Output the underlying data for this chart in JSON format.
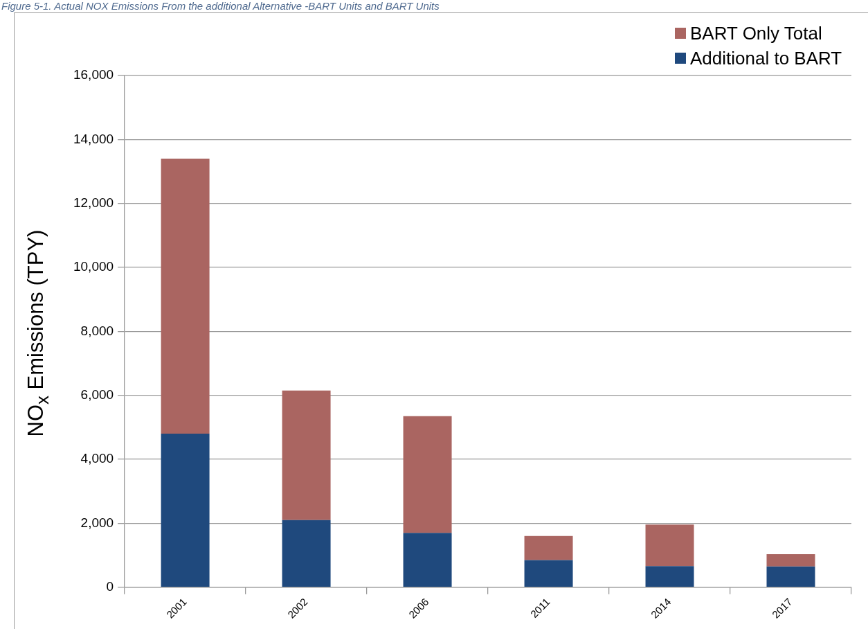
{
  "chart_data": {
    "type": "bar",
    "title": "Figure 5-1. Actual NOX Emissions From the additional Alternative -BART Units and BART Units",
    "ylabel": "NO$_{x}$ Emissions (TPY)",
    "categories": [
      "2001",
      "2002",
      "2006",
      "2011",
      "2014",
      "2017"
    ],
    "series": [
      {
        "name": "Additional to BART",
        "color": "#1f497d",
        "values": [
          4800,
          2100,
          1700,
          850,
          660,
          650
        ]
      },
      {
        "name": "BART Only Total",
        "color": "#aa6561",
        "values": [
          8600,
          4050,
          3650,
          750,
          1300,
          380
        ]
      }
    ],
    "stacked": true,
    "ylim": [
      0,
      16000
    ],
    "yticks": [
      0,
      {
        "value": 2000,
        "label": "2,000"
      },
      {
        "value": 4000,
        "label": "4,000"
      },
      {
        "value": 6000,
        "label": "6,000"
      },
      {
        "value": 8000,
        "label": "8,000"
      },
      {
        "value": 10000,
        "label": "10,000"
      },
      {
        "value": 12000,
        "label": "12,000"
      },
      {
        "value": 14000,
        "label": "14,000"
      },
      {
        "value": 16000,
        "label": "16,000"
      }
    ],
    "grid": "y",
    "legend": "top right"
  }
}
